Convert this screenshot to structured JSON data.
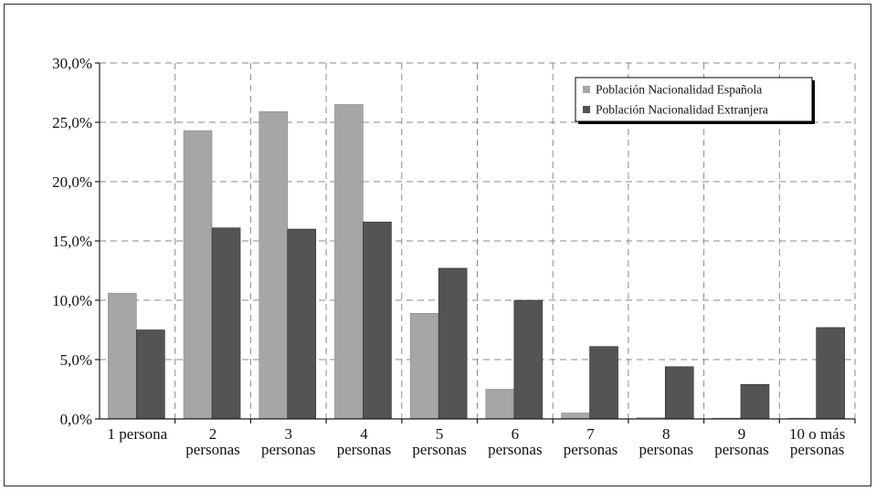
{
  "chart_data": {
    "type": "bar",
    "categories": [
      [
        "1 persona"
      ],
      [
        "2",
        "personas"
      ],
      [
        "3",
        "personas"
      ],
      [
        "4",
        "personas"
      ],
      [
        "5",
        "personas"
      ],
      [
        "6",
        "personas"
      ],
      [
        "7",
        "personas"
      ],
      [
        "8",
        "personas"
      ],
      [
        "9",
        "personas"
      ],
      [
        "10 o más",
        "personas"
      ]
    ],
    "series": [
      {
        "name": "Población Nacionalidad Española",
        "color": "#a6a6a6",
        "values": [
          10.6,
          24.3,
          25.9,
          26.5,
          8.9,
          2.5,
          0.5,
          0.1,
          0.05,
          0.05
        ]
      },
      {
        "name": "Población Nacionalidad Extranjera",
        "color": "#545454",
        "values": [
          7.5,
          16.1,
          16.0,
          16.6,
          12.7,
          10.0,
          6.1,
          4.4,
          2.9,
          7.7
        ]
      }
    ],
    "yticks": [
      "0,0%",
      "5,0%",
      "10,0%",
      "15,0%",
      "20,0%",
      "25,0%",
      "30,0%"
    ],
    "ylim": [
      0,
      30
    ],
    "ystep": 5,
    "grid": true,
    "legend_position": "top-right"
  }
}
